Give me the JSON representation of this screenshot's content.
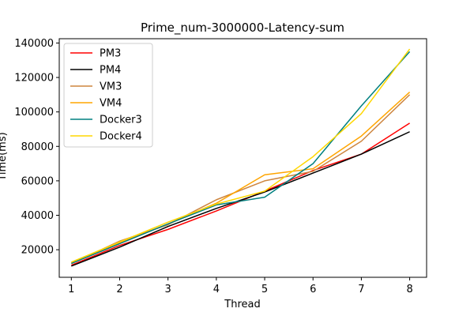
{
  "chart_data": {
    "type": "line",
    "title": "Prime_num-3000000-Latency-sum",
    "xlabel": "Thread",
    "ylabel": "Time(ms)",
    "x": [
      1,
      2,
      3,
      4,
      5,
      6,
      7,
      8
    ],
    "xlim": [
      0.75,
      8.35
    ],
    "ylim": [
      4000,
      142500
    ],
    "xticks": [
      1,
      2,
      3,
      4,
      5,
      6,
      7,
      8
    ],
    "yticks": [
      20000,
      40000,
      60000,
      80000,
      100000,
      120000,
      140000
    ],
    "grid": false,
    "legend_position": "top-left",
    "series": [
      {
        "name": "PM3",
        "color": "#ff0000",
        "values": [
          11000,
          22500,
          31800,
          42500,
          54000,
          66000,
          75500,
          93500
        ]
      },
      {
        "name": "PM4",
        "color": "#000000",
        "values": [
          10500,
          21500,
          33500,
          44000,
          53500,
          64500,
          75500,
          88500
        ]
      },
      {
        "name": "VM3",
        "color": "#cd853f",
        "values": [
          12000,
          25000,
          34500,
          49000,
          60000,
          65500,
          83000,
          110000
        ]
      },
      {
        "name": "VM4",
        "color": "#ffa500",
        "values": [
          12500,
          24000,
          35000,
          47000,
          63500,
          67000,
          86000,
          111500
        ]
      },
      {
        "name": "Docker3",
        "color": "#008080",
        "values": [
          12000,
          23500,
          35000,
          46000,
          50500,
          70000,
          103500,
          135000
        ]
      },
      {
        "name": "Docker4",
        "color": "#ffd700",
        "values": [
          12800,
          24500,
          36000,
          46500,
          54000,
          74000,
          99000,
          136500
        ]
      }
    ]
  }
}
